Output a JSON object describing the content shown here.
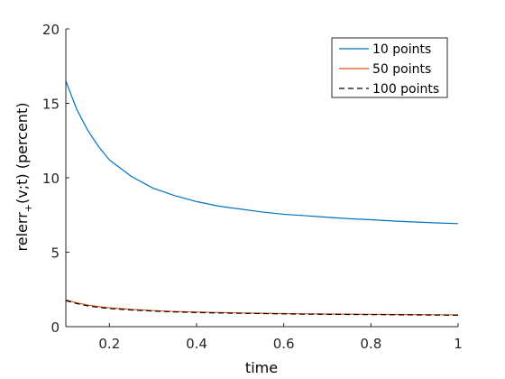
{
  "chart_data": {
    "type": "line",
    "title": "",
    "xlabel": "time",
    "ylabel_main": "relerr",
    "ylabel_sub": "+",
    "ylabel_rest": "(v;t) (percent)",
    "xlim": [
      0.1,
      1
    ],
    "ylim": [
      0,
      20
    ],
    "xticks": [
      0.2,
      0.4,
      0.6,
      0.8,
      1
    ],
    "xtick_labels": [
      "0.2",
      "0.4",
      "0.6",
      "0.8",
      "1"
    ],
    "yticks": [
      0,
      5,
      10,
      15,
      20
    ],
    "ytick_labels": [
      "0",
      "5",
      "10",
      "15",
      "20"
    ],
    "grid": false,
    "legend_position": "top-right",
    "x": [
      0.1,
      0.125,
      0.15,
      0.175,
      0.2,
      0.25,
      0.3,
      0.35,
      0.4,
      0.45,
      0.5,
      0.55,
      0.6,
      0.65,
      0.7,
      0.75,
      0.8,
      0.85,
      0.9,
      0.95,
      1.0
    ],
    "series": [
      {
        "name": "10 points",
        "color": "#0072BD",
        "dash": "solid",
        "values": [
          16.5,
          14.6,
          13.2,
          12.1,
          11.2,
          10.1,
          9.3,
          8.8,
          8.4,
          8.1,
          7.9,
          7.7,
          7.55,
          7.45,
          7.35,
          7.25,
          7.18,
          7.1,
          7.03,
          6.97,
          6.92
        ]
      },
      {
        "name": "50 points",
        "color": "#D95319",
        "dash": "solid",
        "values": [
          1.8,
          1.6,
          1.45,
          1.35,
          1.27,
          1.16,
          1.08,
          1.02,
          0.98,
          0.95,
          0.92,
          0.9,
          0.88,
          0.86,
          0.85,
          0.84,
          0.83,
          0.82,
          0.81,
          0.8,
          0.79
        ]
      },
      {
        "name": "100 points",
        "color": "#000000",
        "dash": "dashed",
        "values": [
          1.75,
          1.55,
          1.4,
          1.3,
          1.22,
          1.12,
          1.05,
          0.99,
          0.95,
          0.92,
          0.9,
          0.88,
          0.86,
          0.84,
          0.83,
          0.82,
          0.81,
          0.8,
          0.79,
          0.78,
          0.77
        ]
      }
    ]
  }
}
